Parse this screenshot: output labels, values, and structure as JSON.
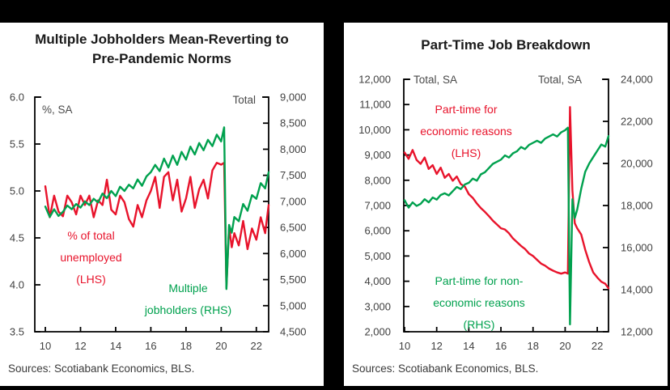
{
  "colors": {
    "red": "#e8132b",
    "green": "#00a14e",
    "axis": "#000000",
    "tick_text": "#3f3f3f",
    "title_text": "#1a1a1a",
    "source_text": "#3a3a3a",
    "frame": "#000000",
    "panel_bg": "#ffffff"
  },
  "chart_data": [
    {
      "type": "line",
      "title": "Multiple Jobholders Mean-Reverting to\nPre-Pandemic Norms",
      "source": "Sources: Scotiabank Economics, BLS.",
      "x_axis": {
        "min": 2009.4,
        "max": 2022.7,
        "ticks": [
          {
            "v": 2010,
            "label": "10"
          },
          {
            "v": 2012,
            "label": "12"
          },
          {
            "v": 2014,
            "label": "14"
          },
          {
            "v": 2016,
            "label": "16"
          },
          {
            "v": 2018,
            "label": "18"
          },
          {
            "v": 2020,
            "label": "20"
          },
          {
            "v": 2022,
            "label": "22"
          }
        ]
      },
      "left_axis": {
        "label": "%, SA",
        "min": 3.5,
        "max": 6.0,
        "ticks": [
          {
            "v": 6.0,
            "label": "6.0"
          },
          {
            "v": 5.5,
            "label": "5.5"
          },
          {
            "v": 5.0,
            "label": "5.0"
          },
          {
            "v": 4.5,
            "label": "4.5"
          },
          {
            "v": 4.0,
            "label": "4.0"
          },
          {
            "v": 3.5,
            "label": "3.5"
          }
        ]
      },
      "right_axis": {
        "label": "Total",
        "min": 4500,
        "max": 9000,
        "ticks": [
          {
            "v": 9000,
            "label": "9,000"
          },
          {
            "v": 8500,
            "label": "8,500"
          },
          {
            "v": 8000,
            "label": "8,000"
          },
          {
            "v": 7500,
            "label": "7,500"
          },
          {
            "v": 7000,
            "label": "7,000"
          },
          {
            "v": 6500,
            "label": "6,500"
          },
          {
            "v": 6000,
            "label": "6,000"
          },
          {
            "v": 5500,
            "label": "5,500"
          },
          {
            "v": 5000,
            "label": "5,000"
          },
          {
            "v": 4500,
            "label": "4,500"
          }
        ]
      },
      "series": [
        {
          "name": "% of total unemployed (LHS)",
          "legend_text": "% of total\nunemployed\n(LHS)",
          "color": "red",
          "axis": "left",
          "x": [
            2010,
            2010.25,
            2010.5,
            2010.75,
            2011,
            2011.25,
            2011.5,
            2011.75,
            2012,
            2012.25,
            2012.5,
            2012.75,
            2013,
            2013.25,
            2013.5,
            2013.75,
            2014,
            2014.25,
            2014.5,
            2014.75,
            2015,
            2015.25,
            2015.5,
            2015.75,
            2016,
            2016.25,
            2016.5,
            2016.75,
            2017,
            2017.25,
            2017.5,
            2017.75,
            2018,
            2018.25,
            2018.5,
            2018.75,
            2019,
            2019.25,
            2019.5,
            2019.75,
            2020,
            2020.17,
            2020.3,
            2020.45,
            2020.6,
            2020.75,
            2021,
            2021.25,
            2021.5,
            2021.75,
            2022,
            2022.25,
            2022.5,
            2022.7
          ],
          "y": [
            5.05,
            4.72,
            4.95,
            4.78,
            4.73,
            4.95,
            4.88,
            4.75,
            4.95,
            4.85,
            4.95,
            4.72,
            4.9,
            4.85,
            5.12,
            4.8,
            4.75,
            4.95,
            4.88,
            4.7,
            4.62,
            4.85,
            4.72,
            4.9,
            5.0,
            5.15,
            4.82,
            5.15,
            5.2,
            4.9,
            5.12,
            4.78,
            4.92,
            5.15,
            4.82,
            5.02,
            5.12,
            4.92,
            5.22,
            5.3,
            5.28,
            5.3,
            3.97,
            4.62,
            4.4,
            4.55,
            4.42,
            4.68,
            4.38,
            4.6,
            4.48,
            4.72,
            4.55,
            4.85
          ]
        },
        {
          "name": "Multiple jobholders (RHS)",
          "legend_text": "Multiple\njobholders (RHS)",
          "color": "green",
          "axis": "right",
          "x": [
            2010,
            2010.25,
            2010.5,
            2010.75,
            2011,
            2011.25,
            2011.5,
            2011.75,
            2012,
            2012.25,
            2012.5,
            2012.75,
            2013,
            2013.25,
            2013.5,
            2013.75,
            2014,
            2014.25,
            2014.5,
            2014.75,
            2015,
            2015.25,
            2015.5,
            2015.75,
            2016,
            2016.25,
            2016.5,
            2016.75,
            2017,
            2017.25,
            2017.5,
            2017.75,
            2018,
            2018.25,
            2018.5,
            2018.75,
            2019,
            2019.25,
            2019.5,
            2019.75,
            2020,
            2020.17,
            2020.3,
            2020.45,
            2020.6,
            2020.75,
            2021,
            2021.25,
            2021.5,
            2021.75,
            2022,
            2022.25,
            2022.5,
            2022.7
          ],
          "y": [
            6900,
            6700,
            6850,
            6720,
            6800,
            6920,
            6850,
            6950,
            6880,
            7000,
            6930,
            7050,
            6980,
            7150,
            7060,
            7200,
            7100,
            7280,
            7200,
            7320,
            7250,
            7420,
            7300,
            7480,
            7560,
            7700,
            7580,
            7820,
            7650,
            7880,
            7700,
            7950,
            7800,
            8050,
            7900,
            8120,
            7980,
            8180,
            8060,
            8280,
            8150,
            8420,
            5320,
            6550,
            6400,
            6700,
            6620,
            6950,
            6820,
            7120,
            7050,
            7350,
            7250,
            7560
          ]
        }
      ]
    },
    {
      "type": "line",
      "title": "Part-Time Job Breakdown",
      "source": "Sources: Scotiabank Economics, BLS.",
      "x_axis": {
        "min": 2009.95,
        "max": 2022.7,
        "ticks": [
          {
            "v": 2010,
            "label": "10"
          },
          {
            "v": 2012,
            "label": "12"
          },
          {
            "v": 2014,
            "label": "14"
          },
          {
            "v": 2016,
            "label": "16"
          },
          {
            "v": 2018,
            "label": "18"
          },
          {
            "v": 2020,
            "label": "20"
          },
          {
            "v": 2022,
            "label": "22"
          }
        ]
      },
      "left_axis": {
        "label": "Total, SA",
        "min": 2000,
        "max": 12000,
        "ticks": [
          {
            "v": 12000,
            "label": "12,000"
          },
          {
            "v": 11000,
            "label": "11,000"
          },
          {
            "v": 10000,
            "label": "10,000"
          },
          {
            "v": 9000,
            "label": "9,000"
          },
          {
            "v": 8000,
            "label": "8,000"
          },
          {
            "v": 7000,
            "label": "7,000"
          },
          {
            "v": 6000,
            "label": "6,000"
          },
          {
            "v": 5000,
            "label": "5,000"
          },
          {
            "v": 4000,
            "label": "4,000"
          },
          {
            "v": 3000,
            "label": "3,000"
          },
          {
            "v": 2000,
            "label": "2,000"
          }
        ]
      },
      "right_axis": {
        "label": "Total, SA",
        "min": 12000,
        "max": 24000,
        "ticks": [
          {
            "v": 24000,
            "label": "24,000"
          },
          {
            "v": 22000,
            "label": "22,000"
          },
          {
            "v": 20000,
            "label": "20,000"
          },
          {
            "v": 18000,
            "label": "18,000"
          },
          {
            "v": 16000,
            "label": "16,000"
          },
          {
            "v": 14000,
            "label": "14,000"
          },
          {
            "v": 12000,
            "label": "12,000"
          }
        ]
      },
      "series": [
        {
          "name": "Part-time for economic reasons (LHS)",
          "legend_text": "Part-time for\neconomic reasons\n(LHS)",
          "color": "red",
          "axis": "left",
          "x": [
            2010,
            2010.25,
            2010.5,
            2010.75,
            2011,
            2011.25,
            2011.5,
            2011.75,
            2012,
            2012.25,
            2012.5,
            2012.75,
            2013,
            2013.25,
            2013.5,
            2013.75,
            2014,
            2014.25,
            2014.5,
            2014.75,
            2015,
            2015.25,
            2015.5,
            2015.75,
            2016,
            2016.25,
            2016.5,
            2016.75,
            2017,
            2017.25,
            2017.5,
            2017.75,
            2018,
            2018.25,
            2018.5,
            2018.75,
            2019,
            2019.25,
            2019.5,
            2019.75,
            2020,
            2020.17,
            2020.3,
            2020.45,
            2020.6,
            2020.75,
            2021,
            2021.25,
            2021.5,
            2021.75,
            2022,
            2022.25,
            2022.5,
            2022.7
          ],
          "y": [
            9100,
            8850,
            9200,
            8800,
            8650,
            8900,
            8450,
            8600,
            8250,
            8500,
            8100,
            8250,
            7980,
            8150,
            7850,
            7750,
            7450,
            7300,
            7080,
            6900,
            6750,
            6580,
            6400,
            6250,
            6100,
            6050,
            5900,
            5700,
            5550,
            5400,
            5280,
            5100,
            5000,
            4850,
            4700,
            4620,
            4500,
            4420,
            4350,
            4300,
            4350,
            4300,
            10900,
            7600,
            6300,
            6100,
            5850,
            5250,
            4750,
            4350,
            4150,
            3980,
            3900,
            3720
          ]
        },
        {
          "name": "Part-time for non-economic reasons (RHS)",
          "legend_text": "Part-time for non-\neconomic reasons\n(RHS)",
          "color": "green",
          "axis": "right",
          "x": [
            2010,
            2010.25,
            2010.5,
            2010.75,
            2011,
            2011.25,
            2011.5,
            2011.75,
            2012,
            2012.25,
            2012.5,
            2012.75,
            2013,
            2013.25,
            2013.5,
            2013.75,
            2014,
            2014.25,
            2014.5,
            2014.75,
            2015,
            2015.25,
            2015.5,
            2015.75,
            2016,
            2016.25,
            2016.5,
            2016.75,
            2017,
            2017.25,
            2017.5,
            2017.75,
            2018,
            2018.25,
            2018.5,
            2018.75,
            2019,
            2019.25,
            2019.5,
            2019.75,
            2020,
            2020.17,
            2020.3,
            2020.45,
            2020.6,
            2020.75,
            2021,
            2021.25,
            2021.5,
            2021.75,
            2022,
            2022.25,
            2022.5,
            2022.7
          ],
          "y": [
            18250,
            17900,
            18150,
            17980,
            18080,
            18300,
            18150,
            18380,
            18280,
            18500,
            18580,
            18480,
            18680,
            18880,
            18780,
            19000,
            19080,
            19280,
            19180,
            19480,
            19580,
            19780,
            19980,
            20080,
            20180,
            20380,
            20280,
            20480,
            20580,
            20780,
            20680,
            20880,
            20980,
            21080,
            20980,
            21180,
            21280,
            21380,
            21280,
            21480,
            21580,
            21700,
            12350,
            18300,
            17400,
            17800,
            18800,
            19600,
            20000,
            20300,
            20600,
            20900,
            20800,
            21300
          ]
        }
      ]
    }
  ]
}
